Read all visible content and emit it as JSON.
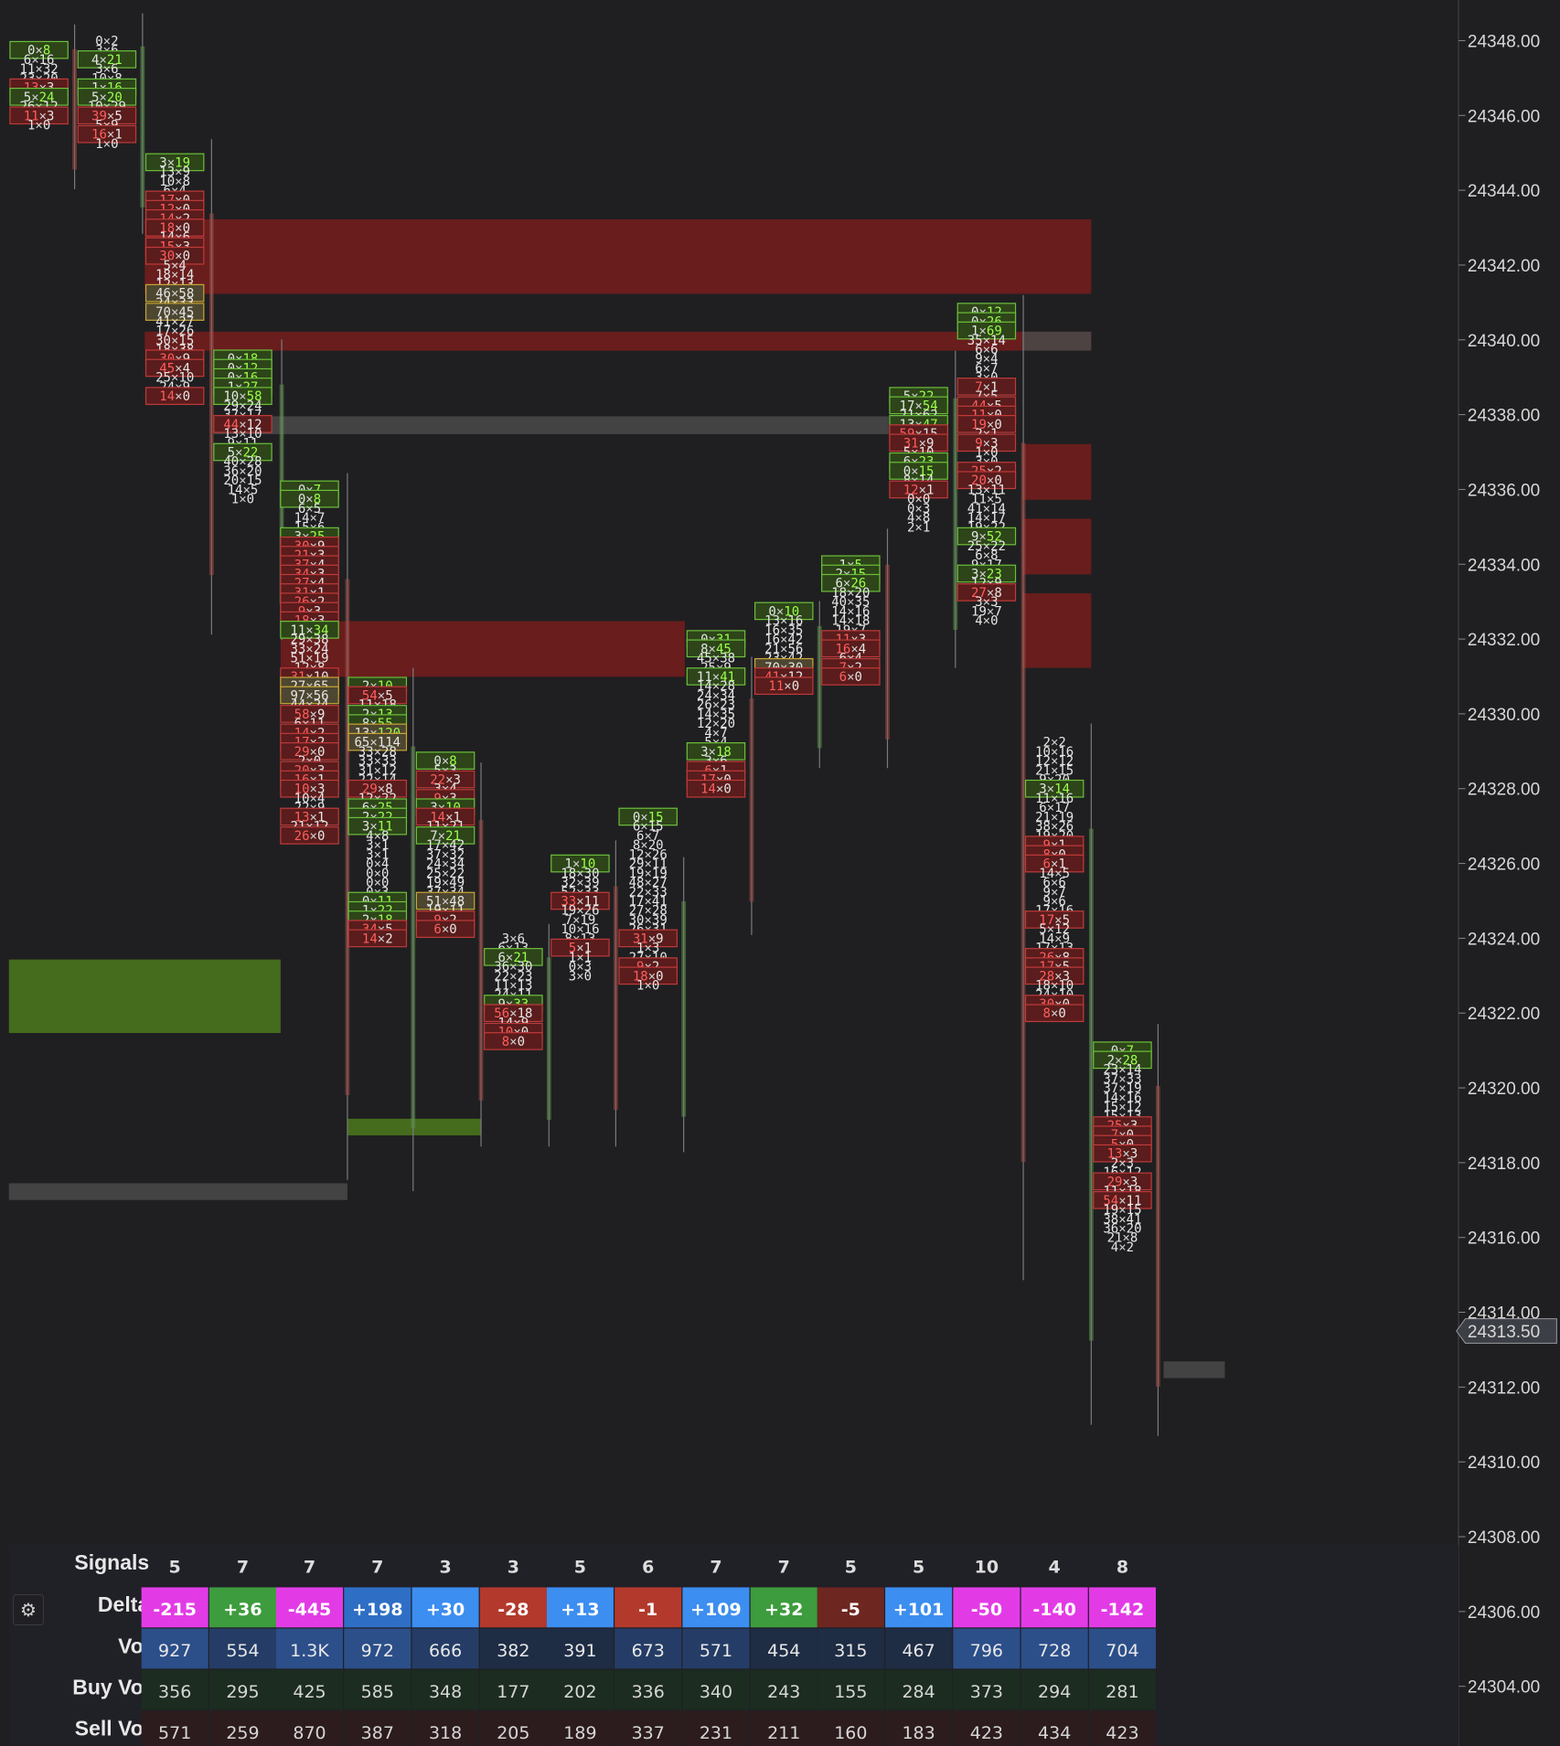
{
  "colors": {
    "background": "#1f1f21",
    "text": "#e6e6e6",
    "sell_highlight": "#ff5e5e",
    "buy_highlight": "#9cff4a",
    "sell_zone": "#6e1e1e",
    "buy_zone": "#48701c",
    "poc_zone": "#4a4a4a",
    "delta_negative": "#e23be6",
    "delta_positive": "#3d9c3d",
    "delta_blue": "#3c8ef0",
    "delta_red": "#b3392c"
  },
  "price_axis": {
    "labels": [
      "24348.00",
      "24346.00",
      "24344.00",
      "24342.00",
      "24340.00",
      "24338.00",
      "24336.00",
      "24334.00",
      "24332.00",
      "24330.00",
      "24328.00",
      "24326.00",
      "24324.00",
      "24322.00",
      "24320.00",
      "24318.00",
      "24316.00",
      "24314.00",
      "24312.00",
      "24310.00",
      "24308.00",
      "24306.00",
      "24304.00"
    ],
    "current_price": "24313.50"
  },
  "footprint": {
    "bars": [
      {
        "label": "bar-1",
        "top": 24347.75,
        "cells": [
          "0×8",
          "6×16",
          "11×32",
          "23×20",
          "13×3",
          "5×24",
          "26×12",
          "11×3",
          "1×0"
        ]
      },
      {
        "label": "bar-2",
        "top": 24348.0,
        "cells": [
          "0×2",
          "3×6",
          "4×21",
          "3×6",
          "10×8",
          "1×16",
          "5×20",
          "10×29",
          "39×5",
          "5×9",
          "16×1",
          "1×0"
        ]
      },
      {
        "label": "bar-3",
        "top": 24344.75,
        "cells": [
          "3×19",
          "13×9",
          "10×8",
          "6×4",
          "17×0",
          "12×0",
          "14×2",
          "18×0",
          "14×6",
          "15×3",
          "30×0",
          "5×4",
          "18×14",
          "12×13",
          "46×58",
          "24×33",
          "70×45",
          "41×27",
          "17×26",
          "30×15",
          "18×38",
          "30×9",
          "45×4",
          "25×10",
          "24×9",
          "14×0"
        ]
      },
      {
        "label": "bar-4",
        "top": 24339.5,
        "cells": [
          "0×18",
          "0×12",
          "0×16",
          "1×27",
          "10×58",
          "29×24",
          "37×17",
          "44×12",
          "13×10",
          "9×11",
          "5×22",
          "40×28",
          "36×20",
          "20×15",
          "14×5",
          "1×0"
        ]
      },
      {
        "label": "bar-5",
        "top": 24336.0,
        "cells": [
          "0×7",
          "0×8",
          "6×5",
          "14×7",
          "15×6",
          "3×25",
          "30×9",
          "21×3",
          "37×4",
          "34×3",
          "27×4",
          "31×1",
          "26×2",
          "9×3",
          "18×3",
          "11×34",
          "29×38",
          "33×24",
          "51×19",
          "12×8",
          "31×10",
          "27×65",
          "97×56",
          "44×24",
          "58×9",
          "6×11",
          "14×2",
          "17×2",
          "29×0",
          "2×0",
          "20×3",
          "16×1",
          "10×3",
          "10×4",
          "22×9",
          "13×1",
          "21×12",
          "26×0"
        ]
      },
      {
        "label": "bar-6",
        "top": 24330.75,
        "cells": [
          "2×10",
          "54×5",
          "11×18",
          "2×13",
          "8×55",
          "13×120",
          "65×114",
          "33×28",
          "33×33",
          "31×12",
          "22×14",
          "29×8",
          "12×22",
          "6×25",
          "2×22",
          "3×11",
          "4×8",
          "3×1",
          "3×1",
          "0×4",
          "0×0",
          "0×0",
          "0×3",
          "0×11",
          "1×22",
          "2×18",
          "34×5",
          "14×2"
        ]
      },
      {
        "label": "bar-7",
        "top": 24328.75,
        "cells": [
          "0×8",
          "5×3",
          "22×3",
          "3×4",
          "9×3",
          "3×10",
          "14×1",
          "11×21",
          "7×21",
          "17×42",
          "37×32",
          "24×34",
          "25×22",
          "19×49",
          "37×34",
          "51×48",
          "19×11",
          "9×2",
          "6×0"
        ]
      },
      {
        "label": "bar-8",
        "top": 24324.0,
        "cells": [
          "3×6",
          "6×13",
          "6×21",
          "36×30",
          "22×23",
          "11×13",
          "24×11",
          "9×33",
          "56×18",
          "14×9",
          "10×0",
          "8×0"
        ]
      },
      {
        "label": "bar-9",
        "top": 24326.0,
        "cells": [
          "1×10",
          "18×30",
          "32×39",
          "52×33",
          "33×11",
          "19×26",
          "7×19",
          "10×16",
          "8×13",
          "5×1",
          "1×1",
          "0×3",
          "3×0"
        ]
      },
      {
        "label": "bar-10",
        "top": 24327.25,
        "cells": [
          "0×15",
          "6×15",
          "6×7",
          "8×20",
          "12×26",
          "29×11",
          "19×19",
          "48×27",
          "22×33",
          "17×41",
          "27×28",
          "30×39",
          "26×31",
          "31×9",
          "1×3",
          "27×10",
          "9×2",
          "18×0",
          "1×0"
        ]
      },
      {
        "label": "bar-11",
        "top": 24332.0,
        "cells": [
          "0×31",
          "8×45",
          "45×38",
          "25×9",
          "11×41",
          "14×28",
          "24×34",
          "26×23",
          "14×35",
          "12×20",
          "4×7",
          "5×4",
          "3×18",
          "3×6",
          "6×1",
          "17×0",
          "14×0"
        ]
      },
      {
        "label": "bar-12",
        "top": 24332.75,
        "cells": [
          "0×10",
          "13×16",
          "16×35",
          "16×42",
          "21×56",
          "23×42",
          "70×30",
          "41×12",
          "11×0"
        ]
      },
      {
        "label": "bar-13",
        "top": 24334.0,
        "cells": [
          "1×5",
          "2×15",
          "6×26",
          "18×20",
          "40×35",
          "14×16",
          "14×18",
          "19×7",
          "11×3",
          "16×4",
          "6×4",
          "7×2",
          "6×0"
        ]
      },
      {
        "label": "bar-14",
        "top": 24338.5,
        "cells": [
          "5×22",
          "17×54",
          "21×62",
          "13×47",
          "59×15",
          "31×9",
          "5×10",
          "6×23",
          "0×15",
          "8×14",
          "12×1",
          "0×0",
          "0×3",
          "4×8",
          "2×1"
        ]
      },
      {
        "label": "bar-15",
        "top": 24340.75,
        "cells": [
          "0×12",
          "0×26",
          "1×69",
          "35×14",
          "6×6",
          "9×4",
          "6×7",
          "3×0",
          "7×1",
          "7×5",
          "44×5",
          "11×0",
          "19×0",
          "2×1",
          "9×3",
          "1×0",
          "3×0",
          "25×2",
          "20×0",
          "13×11",
          "11×5",
          "41×14",
          "14×17",
          "19×22",
          "9×52",
          "25×22",
          "6×8",
          "9×17",
          "3×23",
          "12×9",
          "27×8",
          "3×3",
          "19×7",
          "4×0"
        ]
      },
      {
        "label": "bar-16",
        "top": 24329.25,
        "cells": [
          "2×2",
          "10×16",
          "12×12",
          "21×15",
          "9×20",
          "3×14",
          "11×16",
          "6×17",
          "21×19",
          "38×26",
          "19×20",
          "9×1",
          "8×0",
          "6×1",
          "14×5",
          "6×6",
          "9×7",
          "9×6",
          "17×16",
          "17×5",
          "5×12",
          "14×9",
          "17×13",
          "26×8",
          "17×5",
          "28×3",
          "18×10",
          "24×10",
          "30×0",
          "8×0"
        ]
      },
      {
        "label": "bar-17",
        "top": 24321.0,
        "cells": [
          "0×7",
          "2×28",
          "23×14",
          "37×33",
          "37×19",
          "14×16",
          "15×12",
          "15×13",
          "25×3",
          "7×0",
          "5×0",
          "13×3",
          "2×3",
          "16×12",
          "29×3",
          "11×18",
          "54×11",
          "19×15",
          "38×41",
          "36×20",
          "21×8",
          "4×2"
        ]
      }
    ]
  },
  "stats": {
    "labels": {
      "signals": "Signals",
      "delta": "Delta",
      "vol": "Vol",
      "buy_vol": "Buy Vol",
      "sell_vol": "Sell Vol"
    },
    "signals": [
      "5",
      "7",
      "7",
      "7",
      "3",
      "3",
      "5",
      "6",
      "7",
      "7",
      "5",
      "5",
      "10",
      "4",
      "8"
    ],
    "delta": [
      "-215",
      "+36",
      "-445",
      "+198",
      "+30",
      "-28",
      "+13",
      "-1",
      "+109",
      "+32",
      "-5",
      "+101",
      "-50",
      "-140",
      "-142"
    ],
    "vol": [
      "927",
      "554",
      "1.3K",
      "972",
      "666",
      "382",
      "391",
      "673",
      "571",
      "454",
      "315",
      "467",
      "796",
      "728",
      "704"
    ],
    "buy_vol": [
      "356",
      "295",
      "425",
      "585",
      "348",
      "177",
      "202",
      "336",
      "340",
      "243",
      "155",
      "284",
      "373",
      "294",
      "281"
    ],
    "sell_vol": [
      "571",
      "259",
      "870",
      "387",
      "318",
      "205",
      "189",
      "337",
      "231",
      "211",
      "160",
      "183",
      "423",
      "434",
      "423"
    ]
  },
  "settings_icon": "gear-icon"
}
